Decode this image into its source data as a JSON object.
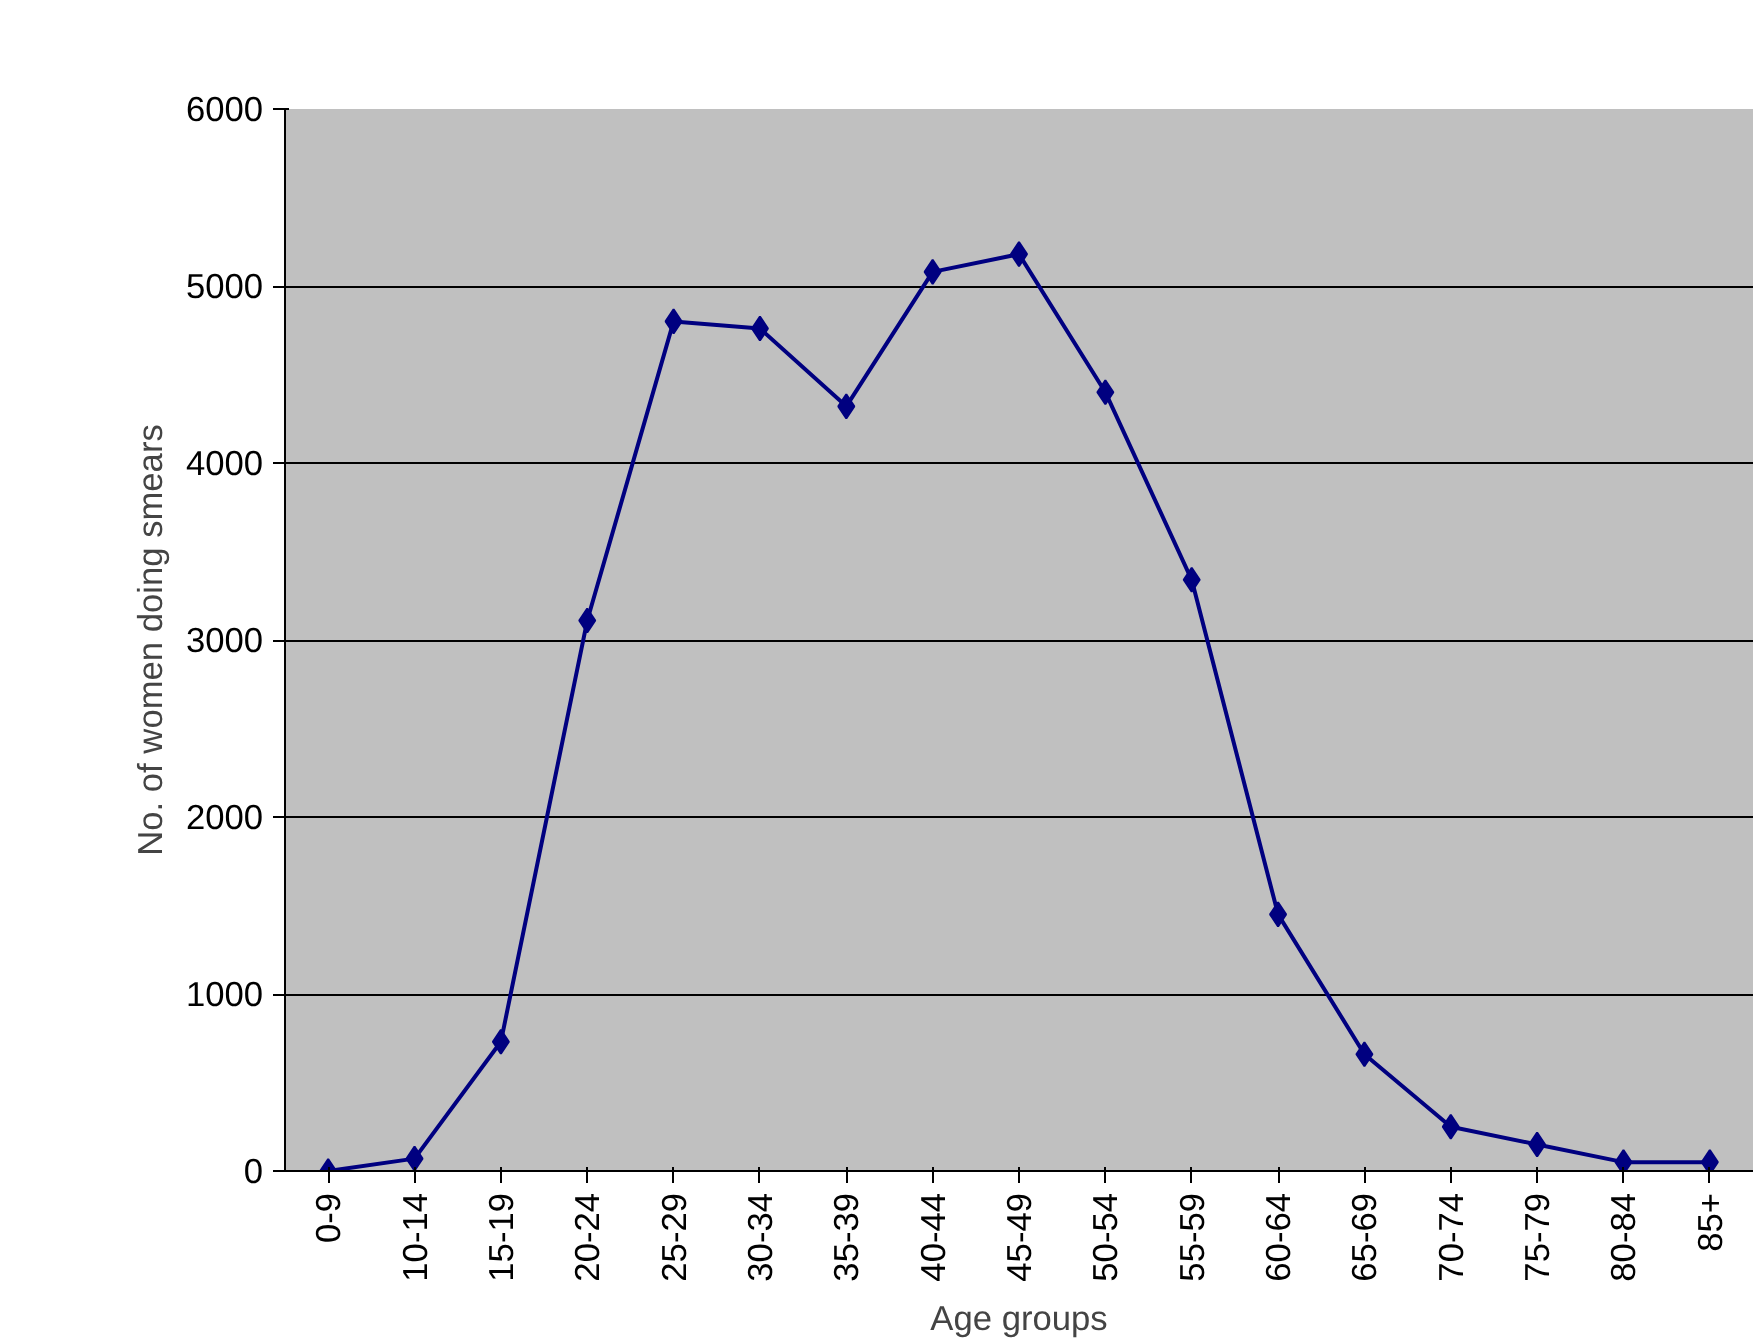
{
  "chart_data": {
    "type": "line",
    "xlabel": "Age groups",
    "ylabel": "No. of women doing smears",
    "categories": [
      "0-9",
      "10-14",
      "15-19",
      "20-24",
      "25-29",
      "30-34",
      "35-39",
      "40-44",
      "45-49",
      "50-54",
      "55-59",
      "60-64",
      "65-69",
      "70-74",
      "75-79",
      "80-84",
      "85+"
    ],
    "series": [
      {
        "color": "#000080",
        "values": [
          0,
          70,
          730,
          3110,
          4800,
          4760,
          4320,
          5080,
          5180,
          4400,
          3340,
          1450,
          660,
          250,
          150,
          50,
          50
        ]
      }
    ],
    "ylim": [
      0,
      6000
    ],
    "yticks": [
      0,
      1000,
      2000,
      3000,
      4000,
      5000,
      6000
    ],
    "grid": "y",
    "marker": "diamond",
    "line_style": "solid"
  }
}
